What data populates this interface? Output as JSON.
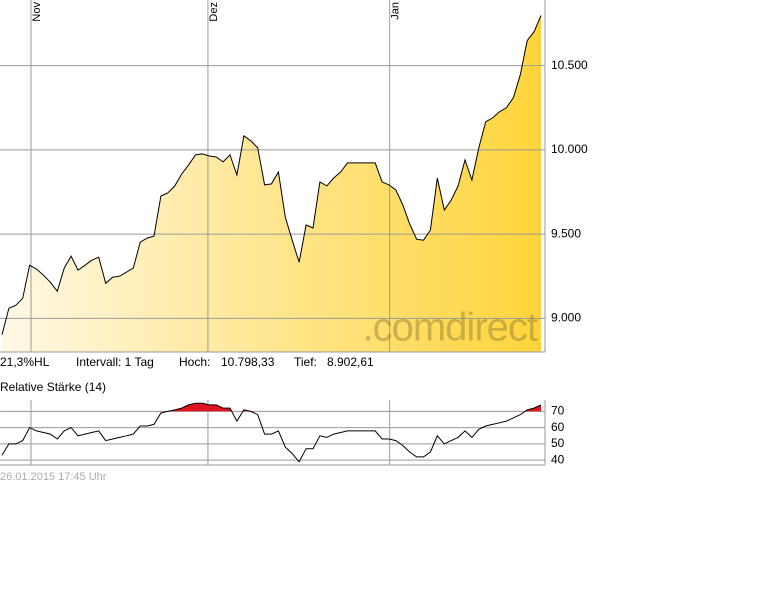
{
  "chart_data": [
    {
      "type": "area",
      "watermark": ".comdirect",
      "color": "#000000",
      "fill_from": "#fff8e6",
      "fill_to": "#ffd43a",
      "xlim": [
        0,
        78
      ],
      "xticks": [
        {
          "value": 4.2,
          "label": "Nov"
        },
        {
          "value": 29.8,
          "label": "Dez"
        },
        {
          "value": 56.1,
          "label": "Jan"
        }
      ],
      "ylim": [
        8800,
        10890
      ],
      "yticks": [
        {
          "value": 9000,
          "label": "9.000"
        },
        {
          "value": 9500,
          "label": "9.500"
        },
        {
          "value": 10000,
          "label": "10.000"
        },
        {
          "value": 10500,
          "label": "10.500"
        }
      ],
      "grid": true,
      "values": [
        8903,
        9060,
        9077,
        9119,
        9315,
        9292,
        9256,
        9214,
        9161,
        9298,
        9369,
        9286,
        9315,
        9345,
        9363,
        9208,
        9244,
        9250,
        9274,
        9298,
        9452,
        9476,
        9488,
        9726,
        9744,
        9786,
        9857,
        9911,
        9970,
        9976,
        9964,
        9958,
        9929,
        9970,
        9851,
        10083,
        10054,
        10012,
        9792,
        9798,
        9869,
        9601,
        9464,
        9333,
        9554,
        9536,
        9810,
        9786,
        9833,
        9869,
        9923,
        9923,
        9923,
        9923,
        9923,
        9810,
        9792,
        9762,
        9673,
        9560,
        9470,
        9464,
        9524,
        9833,
        9643,
        9702,
        9786,
        9940,
        9821,
        10012,
        10167,
        10190,
        10226,
        10250,
        10310,
        10446,
        10649,
        10702,
        10798
      ]
    },
    {
      "type": "line",
      "title": "Relative Stärke (14)",
      "color": "#000000",
      "highlight_above": 70,
      "highlight_color": "#e0141e",
      "xlim": [
        0,
        78
      ],
      "ylim": [
        37,
        77
      ],
      "yticks": [
        40,
        50,
        60,
        70
      ],
      "grid": true,
      "values": [
        43,
        50,
        50,
        52,
        60,
        58,
        57,
        56,
        53,
        58,
        60,
        55,
        56,
        57,
        58,
        52,
        53,
        54,
        55,
        56,
        61,
        61,
        62,
        69,
        70,
        71,
        72,
        74,
        75,
        75,
        74,
        74,
        72,
        72,
        64,
        71,
        70,
        68,
        56,
        56,
        58,
        48,
        44,
        39,
        47,
        47,
        55,
        54,
        56,
        57,
        58,
        58,
        58,
        58,
        58,
        53,
        53,
        52,
        49,
        45,
        42,
        42,
        45,
        55,
        50,
        52,
        54,
        58,
        54,
        59,
        61,
        62,
        63,
        64,
        66,
        68,
        71,
        72,
        74
      ]
    }
  ],
  "info": {
    "range": "21,3%HL",
    "interval": "Intervall: 1 Tag",
    "high_label": "Hoch:",
    "high": "10.798,33",
    "low_label": "Tief:",
    "low": "8.902,61"
  },
  "footer": "26.01.2015 17:45 Uhr"
}
